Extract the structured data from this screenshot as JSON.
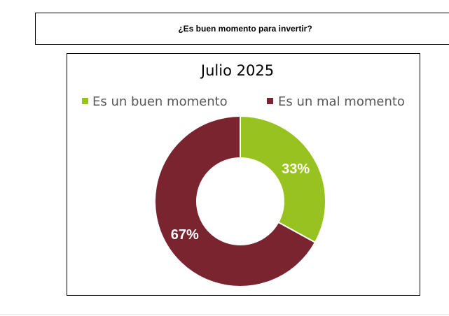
{
  "header": {
    "title": "¿Es buen momento para invertir?"
  },
  "chart_data": {
    "type": "pie",
    "variant": "donut",
    "title": "Julio 2025",
    "legend_position": "top",
    "categories": [
      "Es un buen momento",
      "Es un mal momento"
    ],
    "values": [
      33,
      67
    ],
    "data_labels": [
      "33%",
      "67%"
    ],
    "colors": [
      "#97c21f",
      "#7a2430"
    ]
  }
}
